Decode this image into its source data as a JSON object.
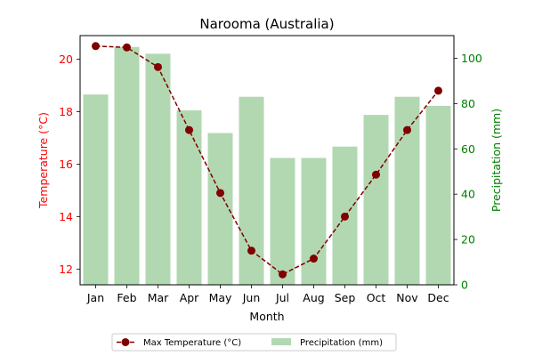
{
  "chart_data": {
    "type": "bar+line",
    "title": "Narooma (Australia)",
    "xlabel": "Month",
    "categories": [
      "Jan",
      "Feb",
      "Mar",
      "Apr",
      "May",
      "Jun",
      "Jul",
      "Aug",
      "Sep",
      "Oct",
      "Nov",
      "Dec"
    ],
    "series": [
      {
        "name": "Max Temperature (°C)",
        "type": "line",
        "axis": "left",
        "color": "#800000",
        "values": [
          20.5,
          20.45,
          19.7,
          17.3,
          14.9,
          12.7,
          11.8,
          12.4,
          14.0,
          15.6,
          17.3,
          18.8
        ]
      },
      {
        "name": "Precipitation (mm)",
        "type": "bar",
        "axis": "right",
        "color": "#b2d8b2",
        "values": [
          84,
          105,
          102,
          77,
          67,
          83,
          56,
          56,
          61,
          75,
          83,
          79
        ]
      }
    ],
    "y_left": {
      "label": "Temperature (°C)",
      "color": "#ff0000",
      "ylim": [
        11.4,
        20.9
      ],
      "ticks": [
        12,
        14,
        16,
        18,
        20
      ]
    },
    "y_right": {
      "label": "Precipitation (mm)",
      "color": "#008000",
      "ylim": [
        0,
        110
      ],
      "ticks": [
        0,
        20,
        40,
        60,
        80,
        100
      ]
    },
    "legend_position": "bottom-center",
    "grid": false
  }
}
